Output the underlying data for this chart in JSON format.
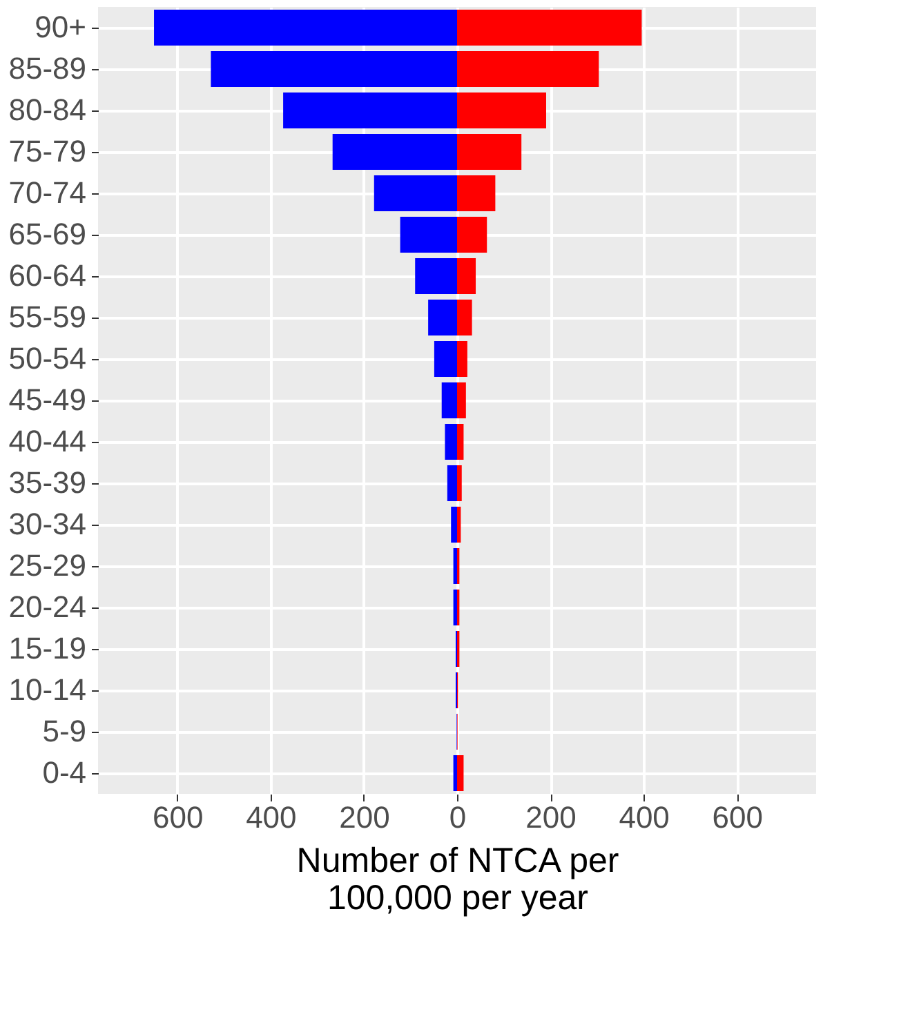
{
  "chart_data": {
    "type": "bar",
    "orientation": "horizontal",
    "xlabel": "Number of NTCA per\n100,000 per year",
    "categories": [
      "90+",
      "85-89",
      "80-84",
      "75-79",
      "70-74",
      "65-69",
      "60-64",
      "55-59",
      "50-54",
      "45-49",
      "40-44",
      "35-39",
      "30-34",
      "25-29",
      "20-24",
      "15-19",
      "10-14",
      "5-9",
      "0-4"
    ],
    "series": [
      {
        "color": "#0000ff",
        "values": [
          -650,
          -528,
          -373,
          -267,
          -178,
          -122,
          -90,
          -62,
          -49,
          -33,
          -26,
          -21,
          -13,
          -8,
          -8,
          -3,
          -3,
          -1,
          -8
        ]
      },
      {
        "color": "#ff0000",
        "values": [
          396,
          304,
          191,
          138,
          82,
          64,
          40,
          32,
          22,
          19,
          14,
          10,
          8,
          5,
          5,
          5,
          2,
          1,
          14
        ]
      }
    ],
    "xlim": [
      -770,
      770
    ],
    "xticks": [
      {
        "value": -600,
        "label": "600"
      },
      {
        "value": -400,
        "label": "400"
      },
      {
        "value": -200,
        "label": "200"
      },
      0,
      200,
      400,
      600
    ],
    "stacked": true,
    "grid": true,
    "legend": false
  }
}
